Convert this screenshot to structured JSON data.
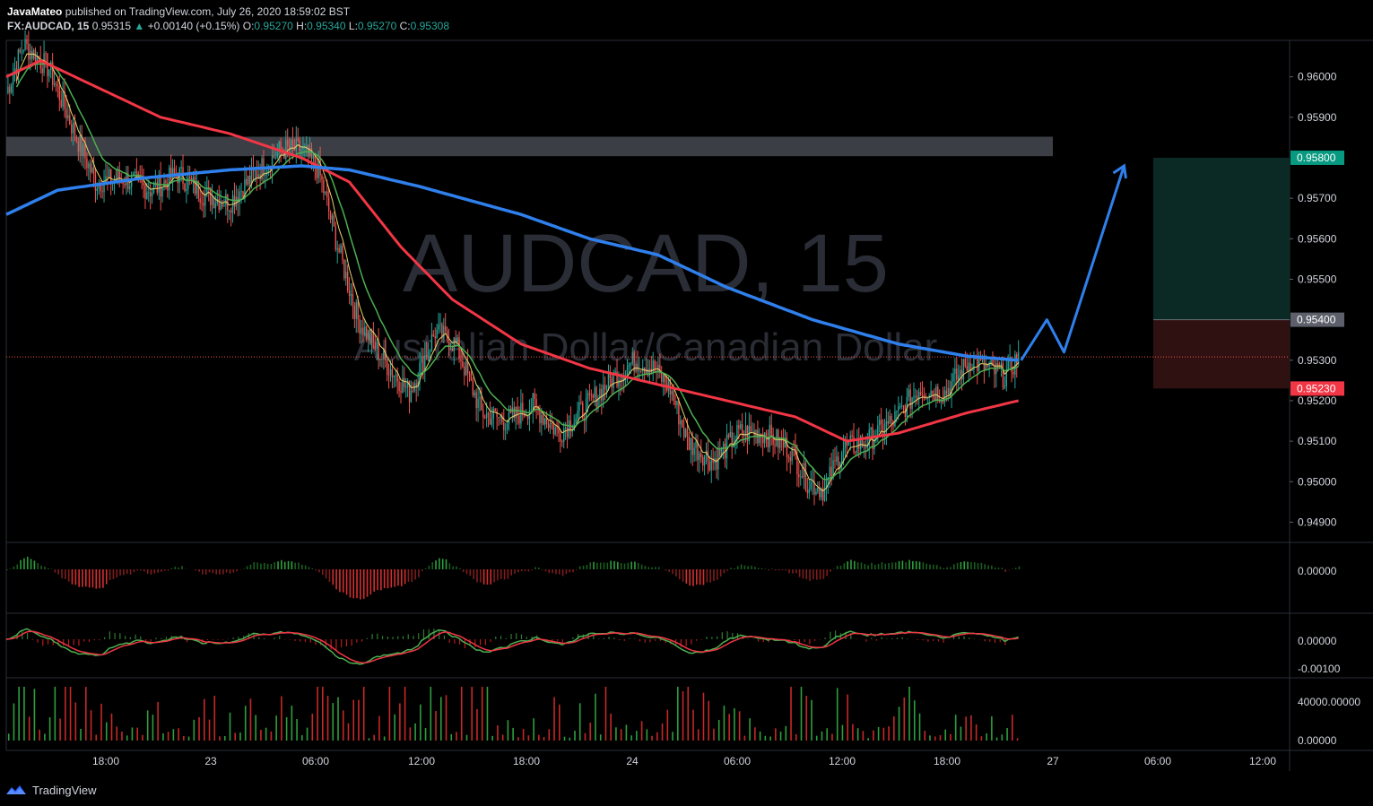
{
  "header": {
    "author": "JavaMateo",
    "published_text": "published on TradingView.com, July 26, 2020 18:59:02 BST",
    "symbol": "FX:AUDCAD, 15",
    "last": "0.95315",
    "change": "+0.00140 (+0.15%)",
    "o_label": "O:",
    "o": "0.95270",
    "h_label": "H:",
    "h": "0.95340",
    "l_label": "L:",
    "l": "0.95270",
    "c_label": "C:",
    "c": "0.95308"
  },
  "watermark": {
    "ticker": "AUDCAD, 15",
    "name": "Australian Dollar/Canadian Dollar"
  },
  "footer": {
    "brand": "TradingView"
  },
  "colors": {
    "up": "#26a69a",
    "down": "#ef5350",
    "ema_blue": "#2f80ed",
    "ema_red": "#f23645",
    "ema_green": "#4caf50",
    "ema_yellow": "#e8d36a",
    "zone": "#4a4d55",
    "tp_zone": "#0b2a25",
    "sl_zone": "#2f1111",
    "tp_badge": "#089981",
    "sl_badge": "#f23645",
    "entry_badge": "#5d606b"
  },
  "chart_data": [
    {
      "type": "candlestick",
      "symbol": "FX:AUDCAD",
      "interval": "15",
      "ylim": [
        0.9485,
        0.9609
      ],
      "y_ticks": [
        "0.96000",
        "0.95900",
        "0.95700",
        "0.95600",
        "0.95500",
        "0.95300",
        "0.95200",
        "0.95100",
        "0.95000",
        "0.94900"
      ],
      "x_ticks": [
        "18:00",
        "23",
        "06:00",
        "12:00",
        "18:00",
        "24",
        "06:00",
        "12:00",
        "18:00",
        "27",
        "06:00",
        "12:00"
      ],
      "close_path": [
        [
          0,
          0.9596
        ],
        [
          10,
          0.9608
        ],
        [
          25,
          0.9602
        ],
        [
          40,
          0.9586
        ],
        [
          52,
          0.9574
        ],
        [
          68,
          0.9575
        ],
        [
          85,
          0.9572
        ],
        [
          100,
          0.9576
        ],
        [
          115,
          0.9571
        ],
        [
          130,
          0.9569
        ],
        [
          145,
          0.9576
        ],
        [
          160,
          0.9582
        ],
        [
          172,
          0.9582
        ],
        [
          182,
          0.9577
        ],
        [
          192,
          0.956
        ],
        [
          205,
          0.954
        ],
        [
          220,
          0.953
        ],
        [
          235,
          0.9522
        ],
        [
          250,
          0.9537
        ],
        [
          262,
          0.9534
        ],
        [
          277,
          0.9517
        ],
        [
          292,
          0.9515
        ],
        [
          307,
          0.9519
        ],
        [
          322,
          0.9512
        ],
        [
          337,
          0.9518
        ],
        [
          352,
          0.9525
        ],
        [
          367,
          0.953
        ],
        [
          377,
          0.9528
        ],
        [
          387,
          0.9523
        ],
        [
          397,
          0.951
        ],
        [
          412,
          0.9505
        ],
        [
          427,
          0.9512
        ],
        [
          442,
          0.9512
        ],
        [
          457,
          0.9508
        ],
        [
          467,
          0.95
        ],
        [
          477,
          0.9498
        ],
        [
          487,
          0.9508
        ],
        [
          502,
          0.951
        ],
        [
          517,
          0.9515
        ],
        [
          532,
          0.9523
        ],
        [
          547,
          0.9522
        ],
        [
          562,
          0.953
        ],
        [
          572,
          0.9528
        ],
        [
          582,
          0.9526
        ],
        [
          590,
          0.9531
        ]
      ],
      "ema_blue": [
        [
          0,
          0.9566
        ],
        [
          30,
          0.9572
        ],
        [
          80,
          0.9575
        ],
        [
          130,
          0.9577
        ],
        [
          172,
          0.9578
        ],
        [
          200,
          0.9577
        ],
        [
          240,
          0.9573
        ],
        [
          300,
          0.9566
        ],
        [
          340,
          0.956
        ],
        [
          380,
          0.9556
        ],
        [
          420,
          0.9548
        ],
        [
          470,
          0.954
        ],
        [
          520,
          0.9534
        ],
        [
          560,
          0.9531
        ],
        [
          590,
          0.953
        ]
      ],
      "ema_red": [
        [
          0,
          0.96
        ],
        [
          20,
          0.9604
        ],
        [
          50,
          0.9598
        ],
        [
          90,
          0.959
        ],
        [
          130,
          0.9586
        ],
        [
          172,
          0.958
        ],
        [
          200,
          0.9574
        ],
        [
          230,
          0.9558
        ],
        [
          260,
          0.9545
        ],
        [
          300,
          0.9534
        ],
        [
          340,
          0.9528
        ],
        [
          380,
          0.9524
        ],
        [
          420,
          0.952
        ],
        [
          460,
          0.9516
        ],
        [
          490,
          0.951
        ],
        [
          520,
          0.9512
        ],
        [
          560,
          0.9517
        ],
        [
          590,
          0.952
        ]
      ]
    },
    {
      "type": "annotation",
      "resistance_zone": [
        0.95804,
        0.95852
      ],
      "entry": "0.95400",
      "take_profit": "0.95800",
      "stop_loss": "0.95230",
      "current_price": 0.95308,
      "projection_arrow": [
        [
          590,
          0.953
        ],
        [
          605,
          0.954
        ],
        [
          615,
          0.9532
        ],
        [
          650,
          0.9578
        ]
      ]
    },
    {
      "type": "histogram",
      "name": "momentum",
      "y_ticks": [
        "0.00000"
      ]
    },
    {
      "type": "line",
      "name": "macd",
      "y_ticks": [
        "0.00000",
        "-0.00100"
      ]
    },
    {
      "type": "bar",
      "name": "volume",
      "y_ticks": [
        "40000.00000",
        "0.00000"
      ]
    }
  ]
}
